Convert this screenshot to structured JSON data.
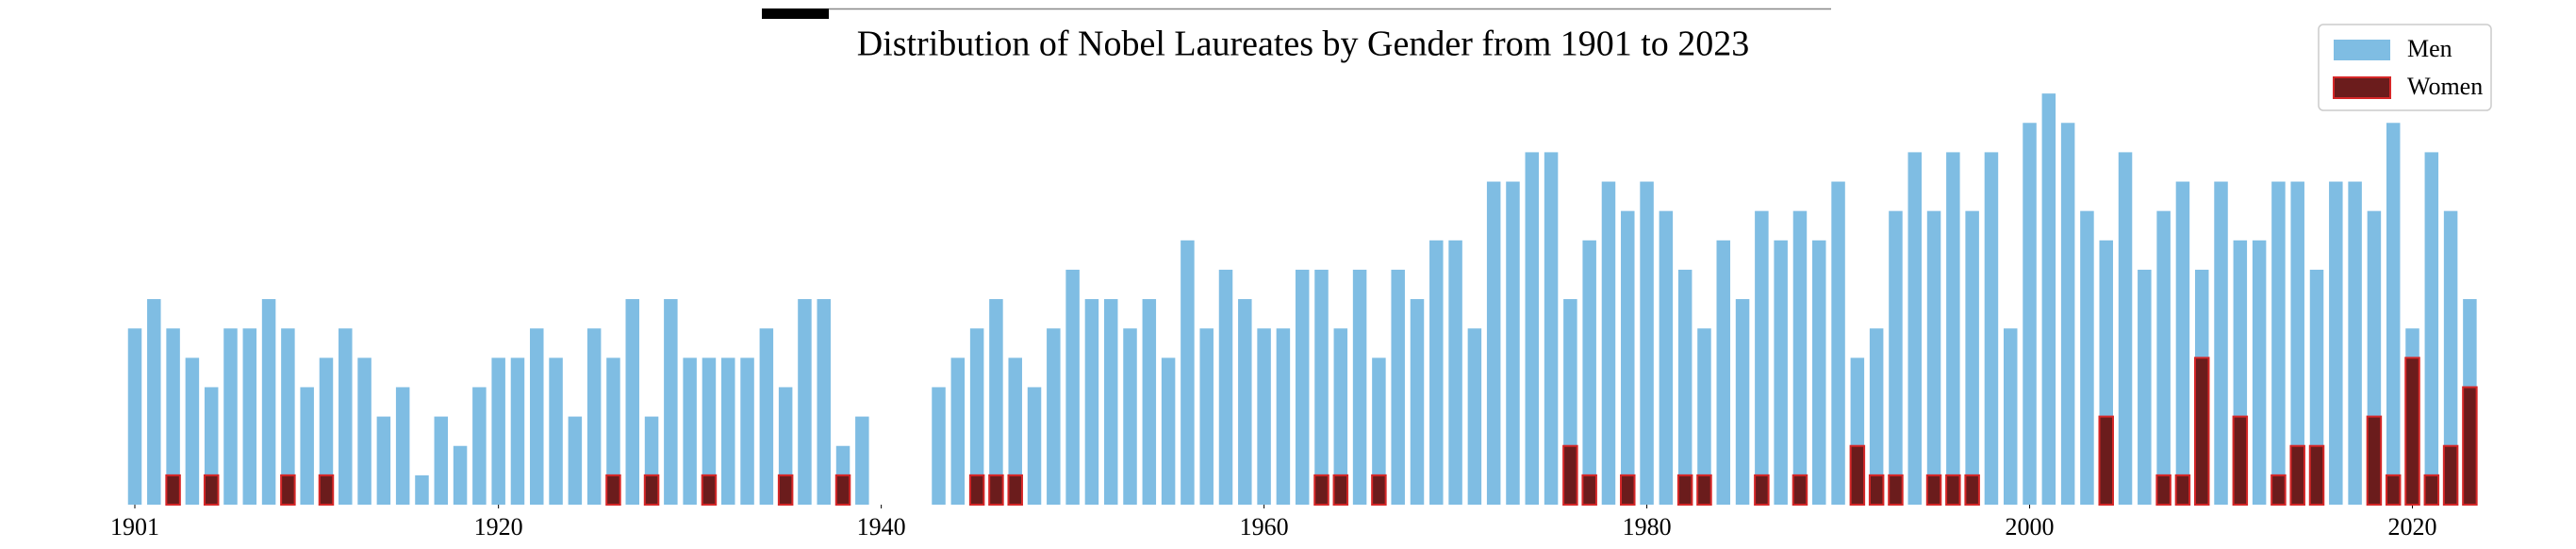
{
  "chart_data": {
    "type": "bar",
    "title": "Distribution of Nobel Laureates by Gender from 1901 to 2023",
    "x": [
      1901,
      1902,
      1903,
      1904,
      1905,
      1906,
      1907,
      1908,
      1909,
      1910,
      1911,
      1912,
      1913,
      1914,
      1915,
      1916,
      1917,
      1918,
      1919,
      1920,
      1921,
      1922,
      1923,
      1924,
      1925,
      1926,
      1927,
      1928,
      1929,
      1930,
      1931,
      1932,
      1933,
      1934,
      1935,
      1936,
      1937,
      1938,
      1939,
      1943,
      1944,
      1945,
      1946,
      1947,
      1948,
      1949,
      1950,
      1951,
      1952,
      1953,
      1954,
      1955,
      1956,
      1957,
      1958,
      1959,
      1960,
      1961,
      1962,
      1963,
      1964,
      1965,
      1966,
      1967,
      1968,
      1969,
      1970,
      1971,
      1972,
      1973,
      1974,
      1975,
      1976,
      1977,
      1978,
      1979,
      1980,
      1981,
      1982,
      1983,
      1984,
      1985,
      1986,
      1987,
      1988,
      1989,
      1990,
      1991,
      1992,
      1993,
      1994,
      1995,
      1996,
      1997,
      1998,
      1999,
      2000,
      2001,
      2002,
      2003,
      2004,
      2005,
      2006,
      2007,
      2008,
      2009,
      2010,
      2011,
      2012,
      2013,
      2014,
      2015,
      2016,
      2017,
      2018,
      2019,
      2020,
      2021,
      2022,
      2023
    ],
    "series": [
      {
        "name": "Men",
        "color": "#7fbde3",
        "values": [
          6,
          7,
          6,
          5,
          4,
          6,
          6,
          7,
          6,
          4,
          5,
          6,
          5,
          3,
          4,
          1,
          3,
          2,
          4,
          5,
          5,
          6,
          5,
          3,
          6,
          5,
          7,
          3,
          7,
          5,
          5,
          5,
          5,
          6,
          4,
          7,
          7,
          2,
          3,
          4,
          5,
          6,
          7,
          5,
          4,
          6,
          8,
          7,
          7,
          6,
          7,
          5,
          9,
          6,
          8,
          7,
          6,
          6,
          8,
          8,
          6,
          8,
          5,
          8,
          7,
          9,
          9,
          6,
          11,
          11,
          12,
          12,
          7,
          9,
          11,
          10,
          11,
          10,
          8,
          6,
          9,
          7,
          10,
          9,
          10,
          9,
          11,
          5,
          6,
          10,
          12,
          10,
          12,
          10,
          12,
          6,
          13,
          14,
          13,
          10,
          9,
          12,
          8,
          10,
          11,
          8,
          11,
          9,
          9,
          11,
          11,
          8,
          11,
          11,
          10,
          13,
          6,
          12,
          10,
          7
        ]
      },
      {
        "name": "Women",
        "color": "#6b1c1c",
        "edgecolor": "#d62728",
        "values": [
          0,
          0,
          1,
          0,
          1,
          0,
          0,
          0,
          1,
          0,
          1,
          0,
          0,
          0,
          0,
          0,
          0,
          0,
          0,
          0,
          0,
          0,
          0,
          0,
          0,
          1,
          0,
          1,
          0,
          0,
          1,
          0,
          0,
          0,
          1,
          0,
          0,
          1,
          0,
          0,
          0,
          1,
          1,
          1,
          0,
          0,
          0,
          0,
          0,
          0,
          0,
          0,
          0,
          0,
          0,
          0,
          0,
          0,
          0,
          1,
          1,
          0,
          1,
          0,
          0,
          0,
          0,
          0,
          0,
          0,
          0,
          0,
          2,
          1,
          0,
          1,
          0,
          0,
          1,
          1,
          0,
          0,
          1,
          0,
          1,
          0,
          0,
          2,
          1,
          1,
          0,
          1,
          1,
          1,
          0,
          0,
          0,
          0,
          0,
          0,
          3,
          0,
          0,
          1,
          1,
          5,
          0,
          3,
          0,
          1,
          2,
          2,
          0,
          0,
          3,
          1,
          5,
          1,
          2,
          4
        ]
      }
    ],
    "xlim": [
      1899,
      2025
    ],
    "ylim": [
      0,
      15
    ],
    "xticks": [
      1901,
      1920,
      1940,
      1960,
      1980,
      2000,
      2020
    ],
    "legend": "upper right"
  }
}
